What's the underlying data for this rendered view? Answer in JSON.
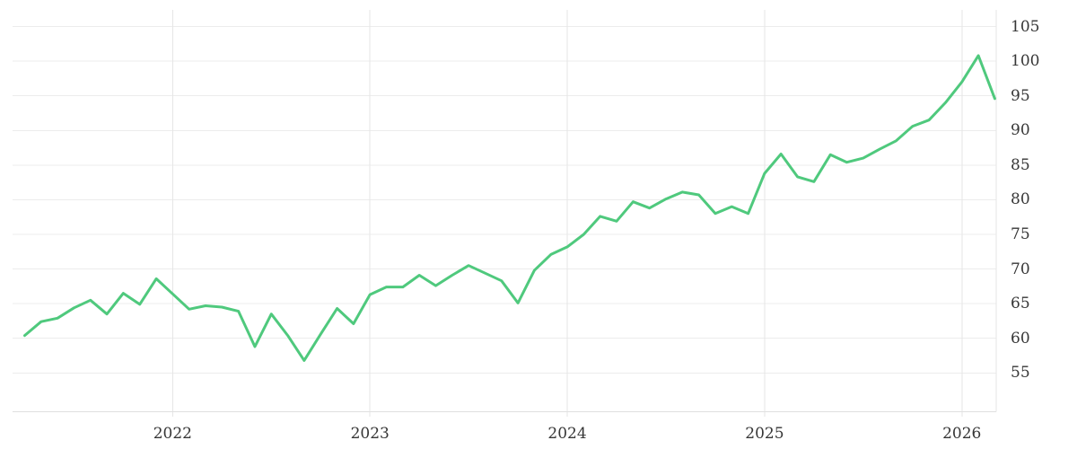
{
  "page": {
    "background": "#ffffff",
    "title": ""
  },
  "chart_data": {
    "type": "line",
    "title": "",
    "legend": "none",
    "grid": "on",
    "y_axis_side": "right",
    "x": [
      "2021-04",
      "2021-05",
      "2021-06",
      "2021-07",
      "2021-08",
      "2021-09",
      "2021-10",
      "2021-11",
      "2021-12",
      "2022-01",
      "2022-02",
      "2022-03",
      "2022-04",
      "2022-05",
      "2022-06",
      "2022-07",
      "2022-08",
      "2022-09",
      "2022-10",
      "2022-11",
      "2022-12",
      "2023-01",
      "2023-02",
      "2023-03",
      "2023-04",
      "2023-05",
      "2023-06",
      "2023-07",
      "2023-08",
      "2023-09",
      "2023-10",
      "2023-11",
      "2023-12",
      "2024-01",
      "2024-02",
      "2024-03",
      "2024-04",
      "2024-05",
      "2024-06",
      "2024-07",
      "2024-08",
      "2024-09",
      "2024-10",
      "2024-11",
      "2024-12",
      "2025-01",
      "2025-02",
      "2025-03",
      "2025-04",
      "2025-05",
      "2025-06",
      "2025-07",
      "2025-08",
      "2025-09",
      "2025-10",
      "2025-11",
      "2025-12",
      "2026-01",
      "2026-02",
      "2026-03"
    ],
    "values": [
      60.4,
      62.4,
      62.9,
      64.4,
      65.5,
      63.5,
      66.5,
      64.9,
      68.6,
      66.4,
      64.2,
      64.7,
      64.5,
      63.9,
      58.8,
      63.5,
      60.4,
      56.8,
      60.6,
      64.3,
      62.1,
      66.3,
      67.4,
      67.4,
      69.1,
      67.6,
      69.1,
      70.5,
      69.4,
      68.3,
      65.1,
      69.8,
      72.1,
      73.2,
      75.0,
      77.6,
      76.9,
      79.7,
      78.8,
      80.1,
      81.1,
      80.7,
      78.0,
      79.0,
      78.0,
      83.8,
      86.6,
      83.3,
      82.6,
      86.5,
      85.4,
      86.0,
      87.3,
      88.5,
      90.6,
      91.5,
      94.0,
      97.0,
      100.8,
      94.6
    ],
    "x_tick_labels": [
      "2022",
      "2023",
      "2024",
      "2025",
      "2026"
    ],
    "y_ticks": [
      55,
      60,
      65,
      70,
      75,
      80,
      85,
      90,
      95,
      100,
      105
    ],
    "ylim": [
      49.4,
      107.4
    ],
    "line_color": "#4fc97d",
    "grid_color": "#ececec",
    "axis_line_color": "#e0e0e0",
    "spine_color": "#e6e6e6",
    "tick_text_color": "#363636"
  }
}
